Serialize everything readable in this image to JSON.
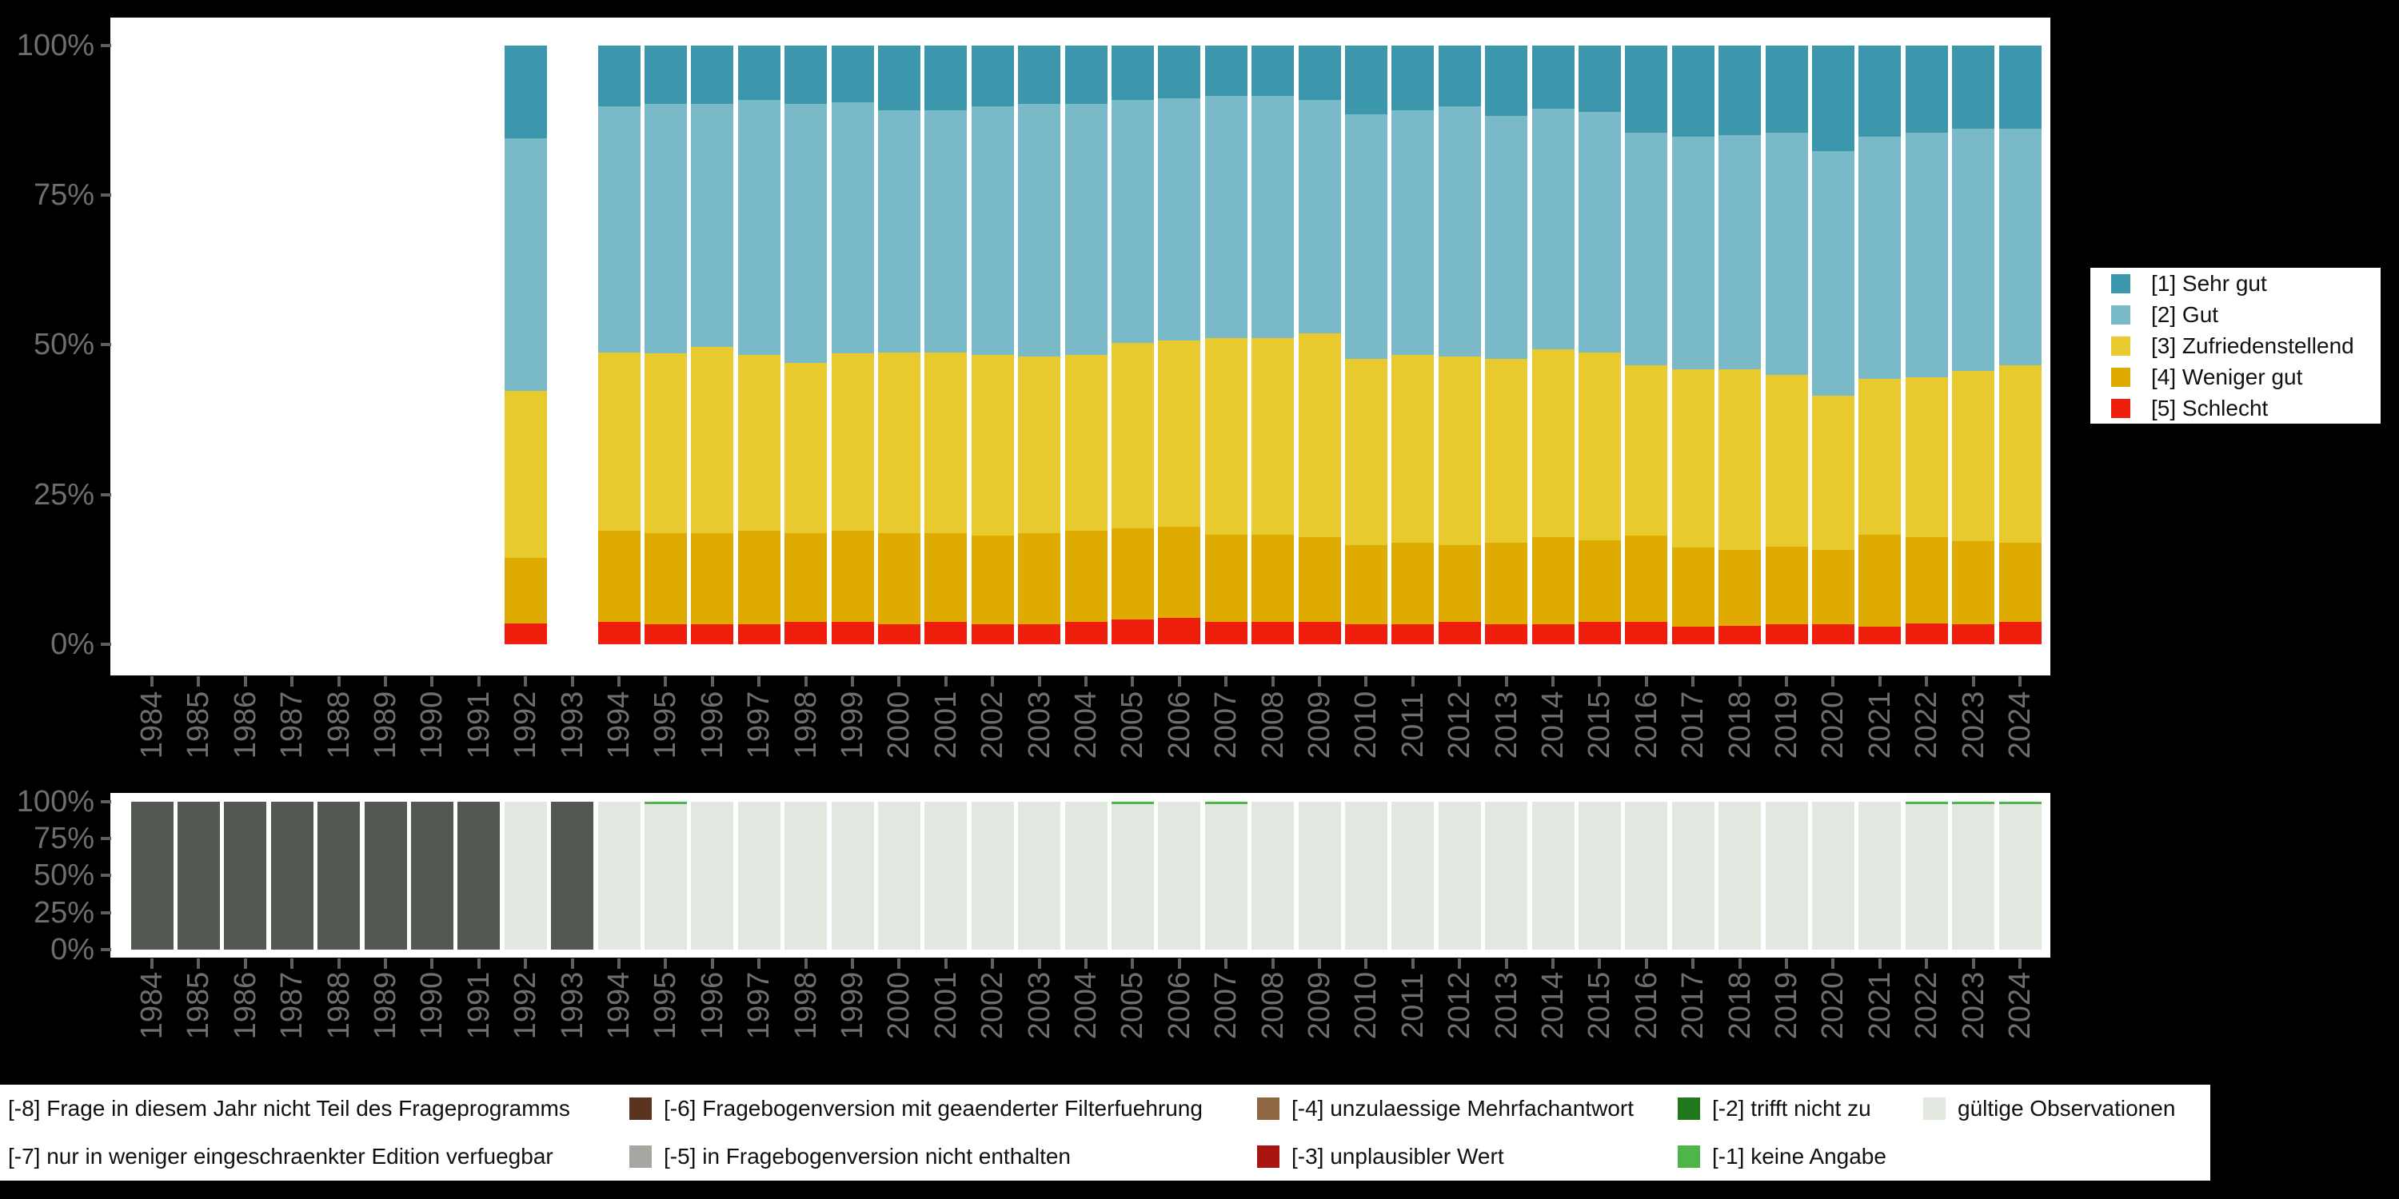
{
  "figure": {
    "background": "#000000",
    "panel_background": "#ffffff",
    "axis_text_color": "#6e6e6e",
    "tick_color": "#5f5f5f",
    "legend_text_color": "#111111"
  },
  "chart_data": [
    {
      "id": "answers",
      "type": "bar",
      "stacked": true,
      "unit": "percent",
      "grid": false,
      "ylim": [
        0,
        100
      ],
      "y_axis_labels": [
        "100%",
        "75%",
        "50%",
        "25%",
        "0%"
      ],
      "legend_position": "right",
      "categories": [
        1984,
        1985,
        1986,
        1987,
        1988,
        1989,
        1990,
        1991,
        1992,
        1993,
        1994,
        1995,
        1996,
        1997,
        1998,
        1999,
        2000,
        2001,
        2002,
        2003,
        2004,
        2005,
        2006,
        2007,
        2008,
        2009,
        2010,
        2011,
        2012,
        2013,
        2014,
        2015,
        2016,
        2017,
        2018,
        2019,
        2020,
        2021,
        2022,
        2023,
        2024
      ],
      "series": [
        {
          "key": "sehr-gut",
          "name": "[1] Sehr gut",
          "color": "#3d97ac",
          "values": [
            null,
            null,
            null,
            null,
            null,
            null,
            null,
            null,
            15.5,
            null,
            10.1,
            9.8,
            9.8,
            9.1,
            9.8,
            9.5,
            10.8,
            10.8,
            10.1,
            9.8,
            9.8,
            9.1,
            8.8,
            8.4,
            8.4,
            9.1,
            11.5,
            10.8,
            10.1,
            11.8,
            10.5,
            11.1,
            14.5,
            15.2,
            14.9,
            14.5,
            17.6,
            15.2,
            14.5,
            13.9,
            13.9
          ]
        },
        {
          "key": "gut",
          "name": "[2] Gut",
          "color": "#7ab9c8",
          "values": [
            null,
            null,
            null,
            null,
            null,
            null,
            null,
            null,
            42.2,
            null,
            41.2,
            41.6,
            40.5,
            42.6,
            43.2,
            41.9,
            40.5,
            40.5,
            41.6,
            42.2,
            41.9,
            40.5,
            40.5,
            40.5,
            40.5,
            38.9,
            40.9,
            40.9,
            41.9,
            40.5,
            40.2,
            40.2,
            38.9,
            38.9,
            39.2,
            40.5,
            40.9,
            40.5,
            40.9,
            40.5,
            39.5
          ]
        },
        {
          "key": "zufriedenstellend",
          "name": "[3] Zufriedenstellend",
          "color": "#e9ca2e",
          "values": [
            null,
            null,
            null,
            null,
            null,
            null,
            null,
            null,
            27.9,
            null,
            29.7,
            30.1,
            31.1,
            29.4,
            28.4,
            29.7,
            30.1,
            30.1,
            30.1,
            29.4,
            29.4,
            31.1,
            31.1,
            32.8,
            32.8,
            34.1,
            31.1,
            31.4,
            31.4,
            30.7,
            31.4,
            31.4,
            28.4,
            29.7,
            30.1,
            28.7,
            25.7,
            26.0,
            26.7,
            28.4,
            29.7
          ]
        },
        {
          "key": "weniger-gut",
          "name": "[4] Weniger gut",
          "color": "#dfab00",
          "values": [
            null,
            null,
            null,
            null,
            null,
            null,
            null,
            null,
            10.9,
            null,
            15.3,
            15.1,
            15.2,
            15.5,
            14.9,
            15.2,
            15.2,
            14.9,
            14.8,
            15.2,
            15.2,
            15.2,
            15.2,
            14.6,
            14.6,
            14.2,
            13.1,
            13.5,
            12.9,
            13.6,
            14.5,
            13.6,
            14.5,
            13.2,
            12.8,
            12.9,
            12.4,
            15.3,
            14.5,
            13.8,
            13.2
          ]
        },
        {
          "key": "schlecht",
          "name": "[5] Schlecht",
          "color": "#ee1d0c",
          "values": [
            null,
            null,
            null,
            null,
            null,
            null,
            null,
            null,
            3.5,
            null,
            3.7,
            3.4,
            3.4,
            3.4,
            3.7,
            3.7,
            3.4,
            3.7,
            3.4,
            3.4,
            3.7,
            4.1,
            4.4,
            3.7,
            3.7,
            3.7,
            3.4,
            3.4,
            3.7,
            3.4,
            3.4,
            3.7,
            3.7,
            3.0,
            3.0,
            3.4,
            3.4,
            3.0,
            3.4,
            3.4,
            3.7
          ]
        }
      ]
    },
    {
      "id": "missings",
      "type": "bar",
      "stacked": true,
      "unit": "percent",
      "grid": false,
      "ylim": [
        0,
        100
      ],
      "y_axis_labels": [
        "100%",
        "75%",
        "50%",
        "25%",
        "0%"
      ],
      "legend_position": "bottom",
      "categories": [
        1984,
        1985,
        1986,
        1987,
        1988,
        1989,
        1990,
        1991,
        1992,
        1993,
        1994,
        1995,
        1996,
        1997,
        1998,
        1999,
        2000,
        2001,
        2002,
        2003,
        2004,
        2005,
        2006,
        2007,
        2008,
        2009,
        2010,
        2011,
        2012,
        2013,
        2014,
        2015,
        2016,
        2017,
        2018,
        2019,
        2020,
        2021,
        2022,
        2023,
        2024
      ],
      "series": [
        {
          "key": "frage-nicht-teil",
          "name": "[-8] Frage in diesem Jahr nicht Teil des Frageprogramms",
          "color": "#545852",
          "values": [
            100,
            100,
            100,
            100,
            100,
            100,
            100,
            100,
            0,
            100,
            0,
            0,
            0,
            0,
            0,
            0,
            0,
            0,
            0,
            0,
            0,
            0,
            0,
            0,
            0,
            0,
            0,
            0,
            0,
            0,
            0,
            0,
            0,
            0,
            0,
            0,
            0,
            0,
            0,
            0,
            0
          ]
        },
        {
          "key": "keine-angabe",
          "name": "[-1] keine Angabe",
          "color": "#4eb648",
          "values": [
            0,
            0,
            0,
            0,
            0,
            0,
            0,
            0,
            0,
            0,
            0,
            1.5,
            0,
            0,
            0,
            0,
            0,
            0,
            0,
            0,
            0,
            1.5,
            0,
            1.5,
            0,
            0,
            0,
            0,
            0,
            0,
            0,
            0,
            0,
            0,
            0,
            0,
            0,
            0,
            1.5,
            1.5,
            1.5
          ]
        },
        {
          "key": "gueltige-observationen",
          "name": "gültige Observationen",
          "color": "#e2e7e0",
          "values": [
            0,
            0,
            0,
            0,
            0,
            0,
            0,
            0,
            100,
            0,
            100,
            98.5,
            100,
            100,
            100,
            100,
            100,
            100,
            100,
            100,
            100,
            98.5,
            100,
            98.5,
            100,
            100,
            100,
            100,
            100,
            100,
            100,
            100,
            100,
            100,
            100,
            100,
            100,
            100,
            98.5,
            98.5,
            98.5
          ]
        }
      ]
    }
  ],
  "bottom_legend": {
    "rows": [
      [
        {
          "key": "code-minus-8",
          "label": "[-8] Frage in diesem Jahr nicht Teil des Frageprogramms",
          "color": null
        },
        {
          "key": "code-minus-6",
          "label": "[-6] Fragebogenversion mit geaenderter Filterfuehrung",
          "color": "#5a341e"
        },
        {
          "key": "code-minus-4",
          "label": "[-4] unzulaessige Mehrfachantwort",
          "color": "#8e6742"
        },
        {
          "key": "code-minus-2",
          "label": "[-2] trifft nicht zu",
          "color": "#22781e"
        },
        {
          "key": "gueltige-observationen",
          "label": "gültige Observationen",
          "color": "#e2e7e0"
        }
      ],
      [
        {
          "key": "code-minus-7",
          "label": "[-7] nur in weniger eingeschraenkter Edition verfuegbar",
          "color": null
        },
        {
          "key": "code-minus-5",
          "label": "[-5] in Fragebogenversion nicht enthalten",
          "color": "#a4a8a1"
        },
        {
          "key": "code-minus-3",
          "label": "[-3] unplausibler Wert",
          "color": "#a81410"
        },
        {
          "key": "code-minus-1",
          "label": "[-1] keine Angabe",
          "color": "#4eb648"
        }
      ]
    ]
  }
}
